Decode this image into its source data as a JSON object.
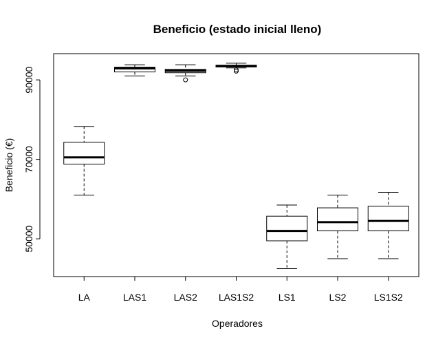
{
  "chart_data": {
    "type": "boxplot",
    "title": "Beneficio (estado inicial lleno)",
    "xlabel": "Operadores",
    "ylabel": "Beneficio (€)",
    "ylim": [
      40500,
      96600
    ],
    "yticks": [
      50000,
      70000,
      90000
    ],
    "ytick_labels": [
      "50000",
      "70000",
      "90000"
    ],
    "categories": [
      "LA",
      "LAS1",
      "LAS2",
      "LAS1S2",
      "LS1",
      "LS2",
      "LS1S2"
    ],
    "boxes": [
      {
        "category": "LA",
        "whisker_low": 61000,
        "q1": 68800,
        "median": 70500,
        "q3": 74300,
        "whisker_high": 78300,
        "outliers": []
      },
      {
        "category": "LAS1",
        "whisker_low": 91000,
        "q1": 92000,
        "median": 92900,
        "q3": 93200,
        "whisker_high": 93800,
        "outliers": []
      },
      {
        "category": "LAS2",
        "whisker_low": 91000,
        "q1": 91800,
        "median": 92300,
        "q3": 92700,
        "whisker_high": 93800,
        "outliers": [
          90000
        ]
      },
      {
        "category": "LAS1S2",
        "whisker_low": 93000,
        "q1": 93250,
        "median": 93500,
        "q3": 93700,
        "whisker_high": 94200,
        "outliers": [
          92500,
          92200
        ]
      },
      {
        "category": "LS1",
        "whisker_low": 42500,
        "q1": 49500,
        "median": 52000,
        "q3": 55700,
        "whisker_high": 58500,
        "outliers": []
      },
      {
        "category": "LS2",
        "whisker_low": 45000,
        "q1": 52000,
        "median": 54200,
        "q3": 57800,
        "whisker_high": 61000,
        "outliers": []
      },
      {
        "category": "LS1S2",
        "whisker_low": 45000,
        "q1": 52000,
        "median": 54500,
        "q3": 58200,
        "whisker_high": 61700,
        "outliers": []
      }
    ]
  }
}
